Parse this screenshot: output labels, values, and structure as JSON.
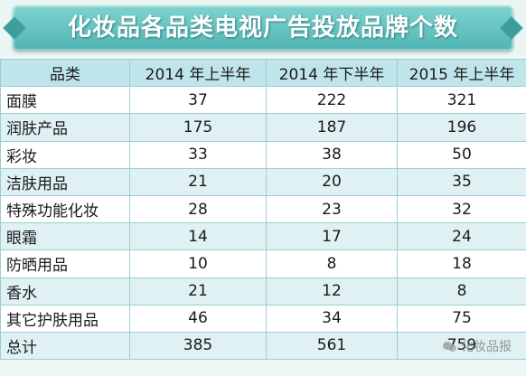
{
  "chart_data": {
    "type": "table",
    "title": "化妆品各品类电视广告投放品牌个数",
    "columns": [
      "品类",
      "2014 年上半年",
      "2014 年下半年",
      "2015 年上半年"
    ],
    "rows": [
      {
        "category": "面膜",
        "values": [
          "37",
          "222",
          "321"
        ]
      },
      {
        "category": "润肤产品",
        "values": [
          "175",
          "187",
          "196"
        ]
      },
      {
        "category": "彩妆",
        "values": [
          "33",
          "38",
          "50"
        ]
      },
      {
        "category": "洁肤用品",
        "values": [
          "21",
          "20",
          "35"
        ]
      },
      {
        "category": "特殊功能化妆",
        "values": [
          "28",
          "23",
          "32"
        ]
      },
      {
        "category": "眼霜",
        "values": [
          "14",
          "17",
          "24"
        ]
      },
      {
        "category": "防晒用品",
        "values": [
          "10",
          "8",
          "18"
        ]
      },
      {
        "category": "香水",
        "values": [
          "21",
          "12",
          "8"
        ]
      },
      {
        "category": "其它护肤用品",
        "values": [
          "46",
          "34",
          "75"
        ]
      },
      {
        "category": "总计",
        "values": [
          "385",
          "561",
          "759"
        ]
      }
    ]
  },
  "watermark": {
    "text": "化妆品报",
    "icon": "wechat-icon"
  }
}
